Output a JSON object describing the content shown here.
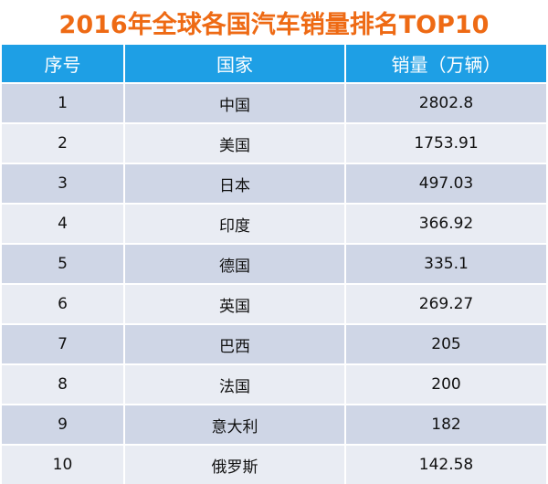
{
  "title": "2016年全球各国汽车销量排名TOP10",
  "header": {
    "rank": "序号",
    "country": "国家",
    "sales": "销量（万辆）"
  },
  "colors": {
    "title": "#ee6a14",
    "header_bg": "#1e9fe5",
    "row_odd": "#cfd6e6",
    "row_even": "#e9ecf3"
  },
  "chart_data": {
    "type": "table",
    "title": "2016年全球各国汽车销量排名TOP10",
    "columns": [
      "序号",
      "国家",
      "销量（万辆）"
    ],
    "rows": [
      {
        "rank": "1",
        "country": "中国",
        "sales": "2802.8"
      },
      {
        "rank": "2",
        "country": "美国",
        "sales": "1753.91"
      },
      {
        "rank": "3",
        "country": "日本",
        "sales": "497.03"
      },
      {
        "rank": "4",
        "country": "印度",
        "sales": "366.92"
      },
      {
        "rank": "5",
        "country": "德国",
        "sales": "335.1"
      },
      {
        "rank": "6",
        "country": "英国",
        "sales": "269.27"
      },
      {
        "rank": "7",
        "country": "巴西",
        "sales": "205"
      },
      {
        "rank": "8",
        "country": "法国",
        "sales": "200"
      },
      {
        "rank": "9",
        "country": "意大利",
        "sales": "182"
      },
      {
        "rank": "10",
        "country": "俄罗斯",
        "sales": "142.58"
      }
    ]
  }
}
